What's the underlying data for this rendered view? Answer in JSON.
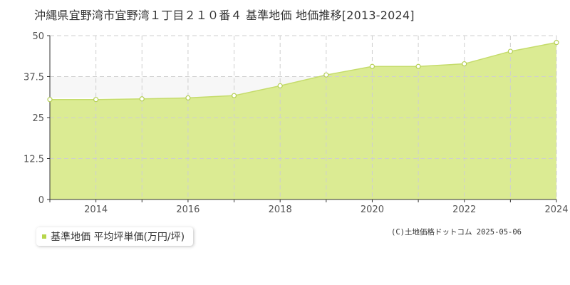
{
  "title": "沖縄県宜野湾市宜野湾１丁目２１０番４ 基準地価 地価推移[2013-2024]",
  "legend": {
    "label": "基準地価 平均坪単価(万円/坪)"
  },
  "credit": "(C)土地価格ドットコム 2025-05-06",
  "colors": {
    "area_fill": "#dbeb93",
    "line": "#c5dc6b",
    "marker_fill": "#ffffff",
    "marker_stroke": "#b5cf55",
    "grid": "#cfcfcf",
    "axis": "#333333",
    "legend_swatch": "#b7d64b"
  },
  "chart_data": {
    "type": "area",
    "x": [
      2013,
      2014,
      2015,
      2016,
      2017,
      2018,
      2019,
      2020,
      2021,
      2022,
      2023,
      2024
    ],
    "series": [
      {
        "name": "基準地価 平均坪単価(万円/坪)",
        "values": [
          30.5,
          30.5,
          30.7,
          31.0,
          31.7,
          34.7,
          38.0,
          40.6,
          40.6,
          41.4,
          45.2,
          47.9
        ]
      }
    ],
    "x_ticks": [
      "2014",
      "2016",
      "2018",
      "2020",
      "2022",
      "2024"
    ],
    "y_ticks": [
      "0",
      "12.5",
      "25",
      "37.5",
      "50"
    ],
    "xlim": [
      2013,
      2024
    ],
    "ylim": [
      0,
      50
    ],
    "grid": true,
    "legend_position": "bottom-left"
  }
}
